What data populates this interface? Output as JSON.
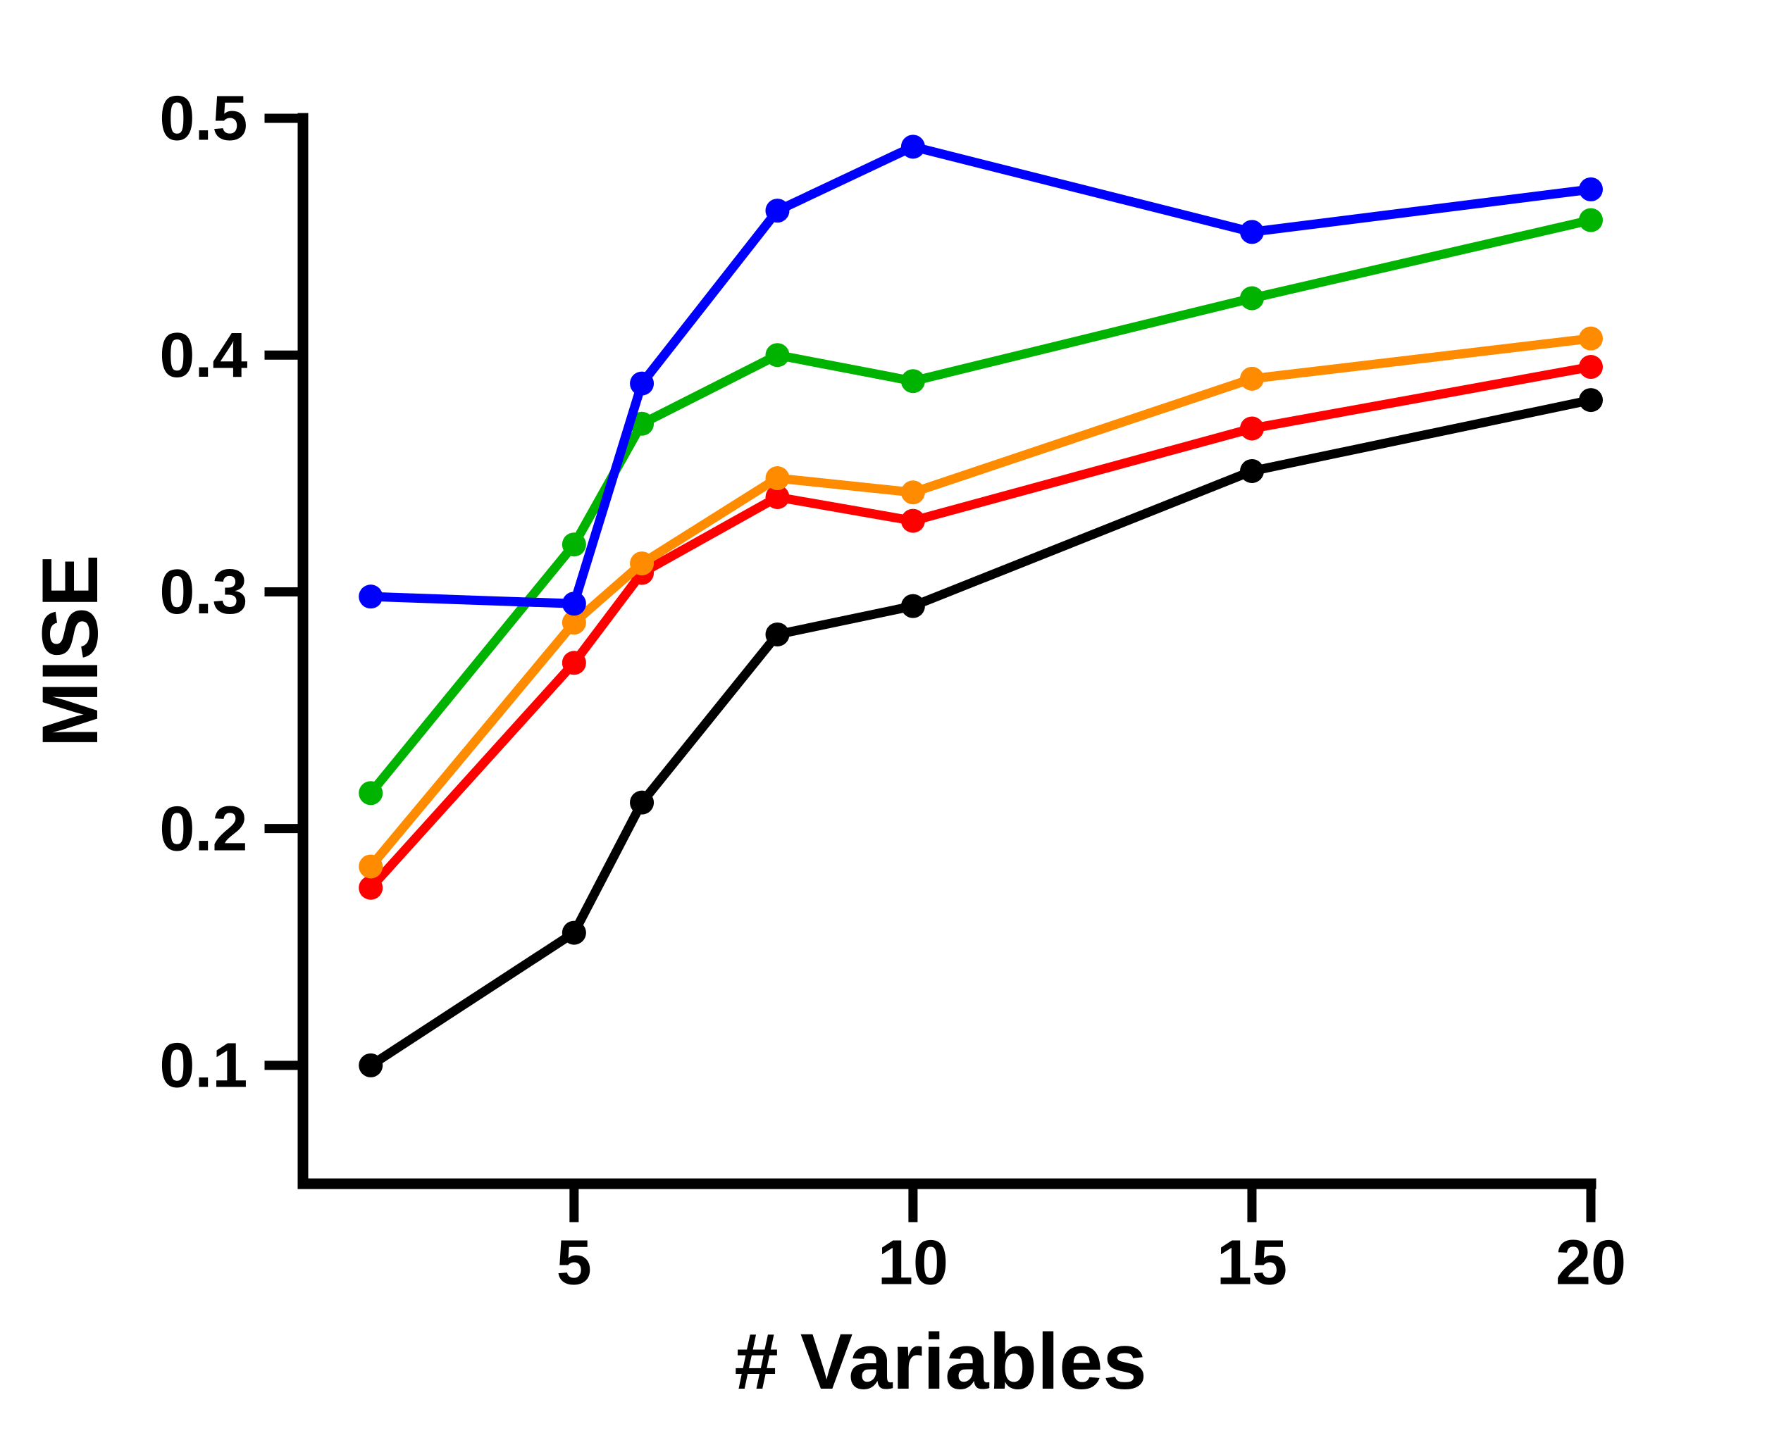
{
  "chart_data": {
    "type": "line",
    "title": "",
    "xlabel": "# Variables",
    "ylabel": "MISE",
    "x": [
      2,
      5,
      6,
      8,
      10,
      15,
      20
    ],
    "xlim": [
      1,
      20
    ],
    "ylim": [
      0.05,
      0.5
    ],
    "x_ticks": [
      5,
      10,
      15,
      20
    ],
    "x_tick_labels": [
      "5",
      "10",
      "15",
      "20"
    ],
    "y_ticks": [
      0.1,
      0.2,
      0.3,
      0.4,
      0.5
    ],
    "y_tick_labels": [
      "0.1",
      "0.2",
      "0.3",
      "0.4",
      "0.5"
    ],
    "grid": false,
    "legend": "none",
    "axis_color": "#000000",
    "background_color": "#ffffff",
    "series": [
      {
        "name": "black",
        "color": "#000000",
        "values": [
          0.1,
          0.156,
          0.211,
          0.282,
          0.294,
          0.351,
          0.381
        ]
      },
      {
        "name": "red",
        "color": "#ff0000",
        "values": [
          0.175,
          0.27,
          0.308,
          0.34,
          0.33,
          0.369,
          0.395
        ]
      },
      {
        "name": "orange",
        "color": "#ff8c00",
        "values": [
          0.184,
          0.287,
          0.312,
          0.348,
          0.342,
          0.39,
          0.407
        ]
      },
      {
        "name": "green",
        "color": "#00b300",
        "values": [
          0.215,
          0.32,
          0.371,
          0.4,
          0.389,
          0.424,
          0.457
        ]
      },
      {
        "name": "blue",
        "color": "#0000ff",
        "values": [
          0.298,
          0.295,
          0.388,
          0.461,
          0.488,
          0.452,
          0.47
        ]
      }
    ]
  }
}
